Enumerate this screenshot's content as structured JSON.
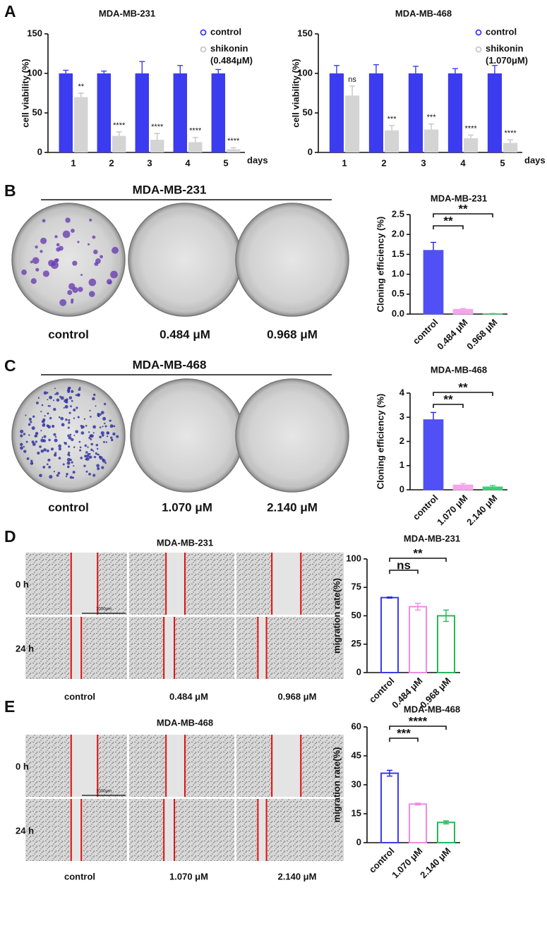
{
  "figure": {
    "panel_letters": [
      "A",
      "B",
      "C",
      "D",
      "E"
    ],
    "photo_panels": [
      {
        "title": "MDA-MB-231",
        "labels": [
          "control",
          "0.484 μM",
          "0.968 μM"
        ]
      },
      {
        "title": "MDA-MB-468",
        "labels": [
          "control",
          "1.070 μM",
          "2.140 μM"
        ]
      },
      {
        "title": "MDA-MB-231",
        "labels": [
          "control",
          "0.484 μM",
          "0.968 μM"
        ],
        "rows": [
          "0 h",
          "24 h"
        ],
        "scale_bar": "1000μm"
      },
      {
        "title": "MDA-MB-468",
        "labels": [
          "control",
          "1.070 μM",
          "2.140 μM"
        ],
        "rows": [
          "0 h",
          "24 h"
        ],
        "scale_bar": "1000μm"
      }
    ]
  },
  "chart_data": [
    {
      "type": "grouped_bar",
      "title": "MDA-MB-231",
      "categories": [
        "1",
        "2",
        "3",
        "4",
        "5"
      ],
      "x_label": "days",
      "y_label": "cell viability (%)",
      "ylim": [
        0,
        150
      ],
      "yticks": [
        0,
        50,
        100,
        150
      ],
      "series": [
        {
          "name": "control",
          "color": "#3b3bf0",
          "values": [
            100,
            100,
            100,
            100,
            100
          ],
          "errors": [
            4,
            3,
            15,
            10,
            5
          ]
        },
        {
          "name": "shikonin (0.484μM)",
          "color": "#d4d4d4",
          "values": [
            70,
            21,
            16,
            13,
            4
          ],
          "errors": [
            5,
            5,
            8,
            6,
            2
          ]
        }
      ],
      "annotations": [
        "**",
        "****",
        "****",
        "****",
        "****"
      ]
    },
    {
      "type": "grouped_bar",
      "title": "MDA-MB-468",
      "categories": [
        "1",
        "2",
        "3",
        "4",
        "5"
      ],
      "x_label": "days",
      "y_label": "cell viability (%)",
      "ylim": [
        0,
        150
      ],
      "yticks": [
        0,
        50,
        100,
        150
      ],
      "series": [
        {
          "name": "control",
          "color": "#3b3bf0",
          "values": [
            100,
            100,
            100,
            100,
            100
          ],
          "errors": [
            10,
            11,
            9,
            6,
            10
          ]
        },
        {
          "name": "shikonin (1.070μM)",
          "color": "#d4d4d4",
          "values": [
            72,
            28,
            29,
            18,
            12
          ],
          "errors": [
            12,
            6,
            7,
            4,
            4
          ]
        }
      ],
      "annotations": [
        "ns",
        "***",
        "***",
        "****",
        "****"
      ]
    },
    {
      "type": "bar",
      "title": "MDA-MB-231",
      "categories": [
        "control",
        "0.484 μM",
        "0.968 μM"
      ],
      "y_label": "Cloning efficiency (%)",
      "ylim": [
        0,
        2.5
      ],
      "yticks": [
        {
          "value": 0,
          "label": "0.0"
        },
        0.5,
        {
          "value": 1,
          "label": "1.0"
        },
        1.5,
        {
          "value": 2,
          "label": "2.0"
        },
        2.5
      ],
      "values": [
        1.6,
        0.12,
        0.01
      ],
      "errors": [
        0.2,
        0.02,
        0.005
      ],
      "colors": [
        "#5050f5",
        "#f4a6ea",
        "#3ccf78"
      ],
      "hollow": false,
      "brackets": [
        "**",
        "**"
      ]
    },
    {
      "type": "bar",
      "title": "MDA-MB-468",
      "categories": [
        "control",
        "1.070 μM",
        "2.140 μM"
      ],
      "y_label": "Cloning efficiency (%)",
      "ylim": [
        0,
        4
      ],
      "yticks": [
        0,
        1,
        2,
        3,
        4
      ],
      "values": [
        2.9,
        0.2,
        0.12
      ],
      "errors": [
        0.3,
        0.06,
        0.06
      ],
      "colors": [
        "#5050f5",
        "#f4a6ea",
        "#3ccf78"
      ],
      "hollow": false,
      "brackets": [
        "**",
        "**"
      ]
    },
    {
      "type": "bar",
      "title": "MDA-MB-231",
      "categories": [
        "control",
        "0.484 μM",
        "0.968 μM"
      ],
      "y_label": "migration rate(%)",
      "ylim": [
        0,
        100
      ],
      "yticks": [
        0,
        25,
        50,
        75,
        100
      ],
      "values": [
        66,
        58,
        50
      ],
      "errors": [
        0.5,
        3,
        5
      ],
      "colors": [
        "#3b3bf0",
        "#f08ae6",
        "#22bb55"
      ],
      "hollow": true,
      "brackets": [
        "ns",
        "**"
      ]
    },
    {
      "type": "bar",
      "title": "MDA-MB-468",
      "categories": [
        "control",
        "1.070 μM",
        "2.140 μM"
      ],
      "y_label": "migration rate(%)",
      "ylim": [
        0,
        60
      ],
      "yticks": [
        0,
        15,
        30,
        45,
        60
      ],
      "values": [
        36,
        20,
        10.5
      ],
      "errors": [
        1.5,
        0.5,
        0.8
      ],
      "colors": [
        "#3b3bf0",
        "#f08ae6",
        "#22bb55"
      ],
      "hollow": true,
      "brackets": [
        "***",
        "****"
      ]
    }
  ]
}
